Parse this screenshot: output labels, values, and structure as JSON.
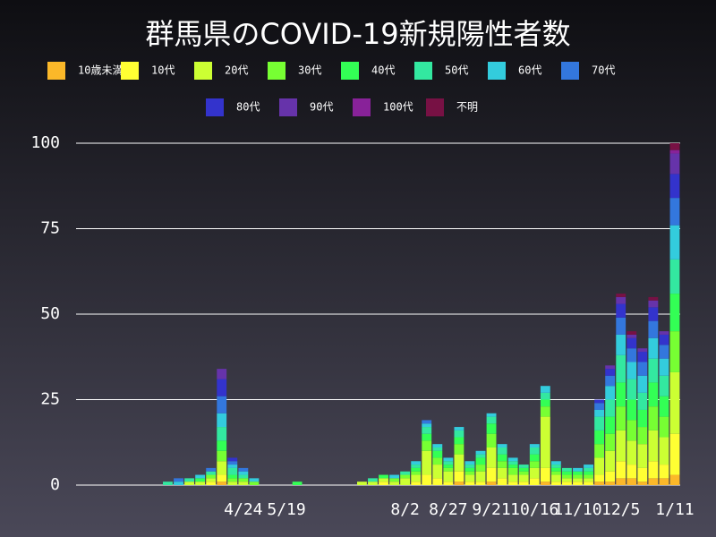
{
  "chart_data": {
    "type": "bar",
    "stacked": true,
    "title": "群馬県のCOVID-19新規陽性者数",
    "categories": [
      null,
      null,
      null,
      null,
      null,
      null,
      null,
      null,
      null,
      null,
      null,
      null,
      null,
      null,
      null,
      "4/24",
      null,
      null,
      null,
      "5/19",
      null,
      null,
      null,
      null,
      null,
      null,
      null,
      null,
      null,
      null,
      "8/2",
      null,
      null,
      null,
      "8/27",
      null,
      null,
      null,
      "9/21",
      null,
      null,
      null,
      "10/16",
      null,
      null,
      null,
      "11/10",
      null,
      null,
      null,
      "12/5",
      null,
      null,
      null,
      null,
      "1/11"
    ],
    "ylim": [
      0,
      100
    ],
    "yticks": [
      0,
      25,
      50,
      75,
      100
    ],
    "grid": true,
    "series": [
      {
        "name": "10歳未満",
        "color": "#fbb829",
        "values": [
          0,
          0,
          0,
          0,
          0,
          0,
          0,
          0,
          0,
          0,
          0,
          0,
          0,
          1,
          0,
          0,
          0,
          0,
          0,
          0,
          0,
          0,
          0,
          0,
          0,
          0,
          0,
          0,
          0,
          0,
          0,
          0,
          0,
          0,
          0,
          1,
          0,
          0,
          1,
          0,
          0,
          0,
          0,
          1,
          0,
          0,
          0,
          0,
          1,
          1,
          2,
          2,
          1,
          2,
          2,
          3
        ]
      },
      {
        "name": "10代",
        "color": "#ffff33",
        "values": [
          0,
          0,
          0,
          0,
          0,
          0,
          0,
          0,
          0,
          0,
          0,
          0,
          1,
          2,
          0,
          0,
          0,
          0,
          0,
          0,
          0,
          0,
          0,
          0,
          0,
          0,
          0,
          0,
          1,
          0,
          0,
          1,
          3,
          2,
          1,
          3,
          1,
          1,
          4,
          2,
          1,
          1,
          2,
          4,
          1,
          1,
          1,
          1,
          2,
          3,
          5,
          4,
          4,
          5,
          4,
          12
        ]
      },
      {
        "name": "20代",
        "color": "#ccff33",
        "values": [
          0,
          0,
          0,
          0,
          0,
          0,
          0,
          0,
          0,
          0,
          1,
          1,
          1,
          4,
          1,
          1,
          0,
          0,
          0,
          0,
          0,
          0,
          0,
          0,
          0,
          0,
          1,
          1,
          1,
          1,
          2,
          2,
          7,
          4,
          3,
          5,
          2,
          3,
          6,
          3,
          2,
          2,
          3,
          15,
          2,
          1,
          1,
          1,
          5,
          6,
          9,
          7,
          7,
          9,
          8,
          18
        ]
      },
      {
        "name": "30代",
        "color": "#77ff33",
        "values": [
          0,
          0,
          0,
          0,
          0,
          0,
          0,
          0,
          0,
          0,
          0,
          0,
          1,
          3,
          1,
          1,
          1,
          0,
          0,
          0,
          0,
          0,
          0,
          0,
          0,
          0,
          0,
          0,
          0,
          1,
          1,
          1,
          3,
          2,
          1,
          3,
          1,
          2,
          4,
          2,
          2,
          1,
          2,
          3,
          1,
          1,
          1,
          1,
          4,
          5,
          7,
          6,
          5,
          7,
          6,
          12
        ]
      },
      {
        "name": "40代",
        "color": "#33ff55",
        "values": [
          0,
          0,
          0,
          0,
          0,
          0,
          0,
          0,
          0,
          0,
          0,
          1,
          0,
          3,
          1,
          0,
          0,
          0,
          0,
          0,
          1,
          0,
          0,
          0,
          0,
          0,
          0,
          0,
          1,
          0,
          0,
          1,
          2,
          2,
          1,
          2,
          1,
          2,
          3,
          2,
          1,
          1,
          2,
          2,
          1,
          1,
          1,
          1,
          4,
          5,
          7,
          6,
          5,
          7,
          6,
          11
        ]
      },
      {
        "name": "50代",
        "color": "#33e8a0",
        "values": [
          0,
          0,
          0,
          0,
          0,
          0,
          0,
          0,
          1,
          0,
          1,
          0,
          1,
          4,
          2,
          1,
          0,
          0,
          0,
          0,
          0,
          0,
          0,
          0,
          0,
          0,
          0,
          1,
          0,
          0,
          1,
          1,
          2,
          1,
          1,
          2,
          1,
          1,
          2,
          2,
          1,
          1,
          2,
          2,
          1,
          1,
          0,
          1,
          4,
          5,
          8,
          6,
          5,
          7,
          6,
          10
        ]
      },
      {
        "name": "60代",
        "color": "#33ccdd",
        "values": [
          0,
          0,
          0,
          0,
          0,
          0,
          0,
          0,
          0,
          1,
          0,
          1,
          0,
          4,
          1,
          1,
          1,
          0,
          0,
          0,
          0,
          0,
          0,
          0,
          0,
          0,
          0,
          0,
          0,
          1,
          0,
          1,
          1,
          1,
          1,
          1,
          1,
          1,
          1,
          1,
          1,
          0,
          1,
          2,
          1,
          0,
          1,
          1,
          2,
          4,
          6,
          5,
          5,
          6,
          5,
          10
        ]
      },
      {
        "name": "70代",
        "color": "#3377dd",
        "values": [
          0,
          0,
          0,
          0,
          0,
          0,
          0,
          0,
          0,
          1,
          0,
          0,
          1,
          5,
          1,
          1,
          0,
          0,
          0,
          0,
          0,
          0,
          0,
          0,
          0,
          0,
          0,
          0,
          0,
          0,
          0,
          0,
          1,
          0,
          0,
          0,
          0,
          0,
          0,
          0,
          0,
          0,
          0,
          0,
          0,
          0,
          0,
          0,
          2,
          3,
          5,
          4,
          4,
          5,
          4,
          8
        ]
      },
      {
        "name": "80代",
        "color": "#3333cc",
        "values": [
          0,
          0,
          0,
          0,
          0,
          0,
          0,
          0,
          0,
          0,
          0,
          0,
          0,
          5,
          1,
          0,
          0,
          0,
          0,
          0,
          0,
          0,
          0,
          0,
          0,
          0,
          0,
          0,
          0,
          0,
          0,
          0,
          0,
          0,
          0,
          0,
          0,
          0,
          0,
          0,
          0,
          0,
          0,
          0,
          0,
          0,
          0,
          0,
          1,
          2,
          4,
          3,
          3,
          4,
          3,
          7
        ]
      },
      {
        "name": "90代",
        "color": "#6633aa",
        "values": [
          0,
          0,
          0,
          0,
          0,
          0,
          0,
          0,
          0,
          0,
          0,
          0,
          0,
          3,
          0,
          0,
          0,
          0,
          0,
          0,
          0,
          0,
          0,
          0,
          0,
          0,
          0,
          0,
          0,
          0,
          0,
          0,
          0,
          0,
          0,
          0,
          0,
          0,
          0,
          0,
          0,
          0,
          0,
          0,
          0,
          0,
          0,
          0,
          0,
          1,
          2,
          1,
          1,
          2,
          1,
          6
        ]
      },
      {
        "name": "100代",
        "color": "#882299",
        "values": [
          0,
          0,
          0,
          0,
          0,
          0,
          0,
          0,
          0,
          0,
          0,
          0,
          0,
          0,
          0,
          0,
          0,
          0,
          0,
          0,
          0,
          0,
          0,
          0,
          0,
          0,
          0,
          0,
          0,
          0,
          0,
          0,
          0,
          0,
          0,
          0,
          0,
          0,
          0,
          0,
          0,
          0,
          0,
          0,
          0,
          0,
          0,
          0,
          0,
          0,
          0,
          0,
          0,
          0,
          0,
          1
        ]
      },
      {
        "name": "不明",
        "color": "#771144",
        "values": [
          0,
          0,
          0,
          0,
          0,
          0,
          0,
          0,
          0,
          0,
          0,
          0,
          0,
          0,
          0,
          0,
          0,
          0,
          0,
          0,
          0,
          0,
          0,
          0,
          0,
          0,
          0,
          0,
          0,
          0,
          0,
          0,
          0,
          0,
          0,
          0,
          0,
          0,
          0,
          0,
          0,
          0,
          0,
          0,
          0,
          0,
          0,
          0,
          0,
          0,
          1,
          1,
          0,
          1,
          0,
          2
        ]
      }
    ]
  }
}
